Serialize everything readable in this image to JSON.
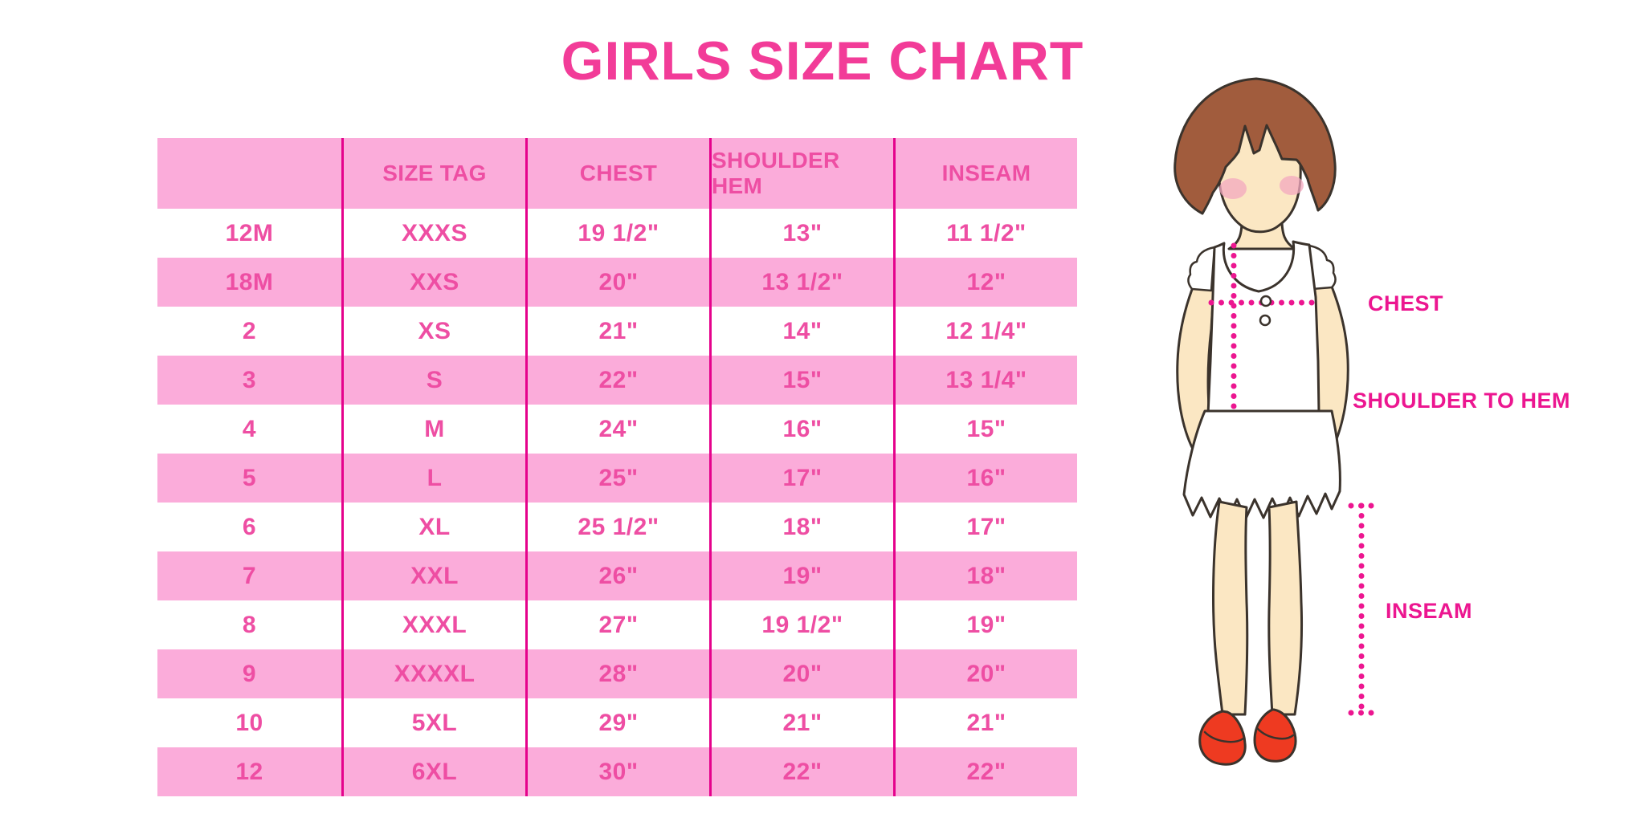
{
  "title": "GIRLS SIZE CHART",
  "chart_data": {
    "type": "table",
    "title": "GIRLS SIZE CHART",
    "columns": [
      "",
      "SIZE TAG",
      "CHEST",
      "SHOULDER HEM",
      "INSEAM"
    ],
    "rows": [
      [
        "12M",
        "XXXS",
        "19 1/2\"",
        "13\"",
        "11 1/2\""
      ],
      [
        "18M",
        "XXS",
        "20\"",
        "13 1/2\"",
        "12\""
      ],
      [
        "2",
        "XS",
        "21\"",
        "14\"",
        "12 1/4\""
      ],
      [
        "3",
        "S",
        "22\"",
        "15\"",
        "13 1/4\""
      ],
      [
        "4",
        "M",
        "24\"",
        "16\"",
        "15\""
      ],
      [
        "5",
        "L",
        "25\"",
        "17\"",
        "16\""
      ],
      [
        "6",
        "XL",
        "25 1/2\"",
        "18\"",
        "17\""
      ],
      [
        "7",
        "XXL",
        "26\"",
        "19\"",
        "18\""
      ],
      [
        "8",
        "XXXL",
        "27\"",
        "19 1/2\"",
        "19\""
      ],
      [
        "9",
        "XXXXL",
        "28\"",
        "20\"",
        "20\""
      ],
      [
        "10",
        "5XL",
        "29\"",
        "21\"",
        "21\""
      ],
      [
        "12",
        "6XL",
        "30\"",
        "22\"",
        "22\""
      ]
    ],
    "row_striping": "header pink, then alternating white/pink starting white",
    "units": "inches"
  },
  "diagram": {
    "figure": "girl-illustration",
    "labels": {
      "chest": "CHEST",
      "shoulder_to_hem": "SHOULDER TO HEM",
      "inseam": "INSEAM"
    }
  },
  "colors": {
    "title_pink": "#F23C98",
    "table_fill_pink": "#FBACDA",
    "table_line_magenta": "#E5028C",
    "table_text_pink": "#EE4EA3",
    "measure_magenta": "#EC1690",
    "hair_brown": "#A15C3D",
    "skin": "#FBE7C3",
    "blush": "#F4A9C0",
    "shoe_red": "#EE3A21",
    "outline": "#3B332C"
  }
}
